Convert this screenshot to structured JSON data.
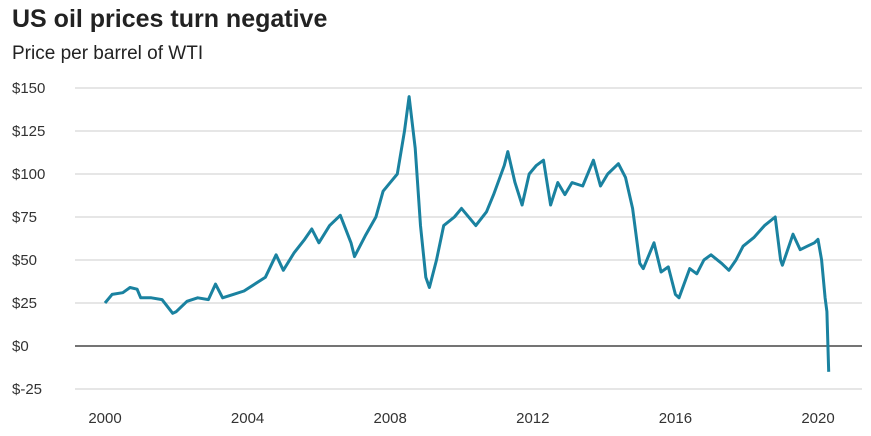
{
  "chart_data": {
    "type": "line",
    "title": "US oil prices turn negative",
    "subtitle": "Price per barrel of WTI",
    "xlabel": "",
    "ylabel": "",
    "ylim": [
      -25,
      150
    ],
    "yticks": [
      150,
      125,
      100,
      75,
      50,
      25,
      0,
      -25
    ],
    "ytick_labels": [
      "$150",
      "$125",
      "$100",
      "$75",
      "$50",
      "$25",
      "$0",
      "$-25"
    ],
    "xticks": [
      2000,
      2004,
      2008,
      2012,
      2016,
      2020
    ],
    "xtick_labels": [
      "2000",
      "2004",
      "2008",
      "2012",
      "2016",
      "2020"
    ],
    "grid": true,
    "line_color": "#1a82a0",
    "x": [
      2000.0,
      2000.2,
      2000.5,
      2000.7,
      2000.9,
      2001.0,
      2001.3,
      2001.6,
      2001.9,
      2002.0,
      2002.3,
      2002.6,
      2002.9,
      2003.1,
      2003.3,
      2003.6,
      2003.9,
      2004.2,
      2004.5,
      2004.8,
      2005.0,
      2005.3,
      2005.6,
      2005.8,
      2006.0,
      2006.3,
      2006.6,
      2006.9,
      2007.0,
      2007.3,
      2007.6,
      2007.8,
      2008.0,
      2008.2,
      2008.4,
      2008.53,
      2008.7,
      2008.85,
      2009.0,
      2009.1,
      2009.3,
      2009.5,
      2009.8,
      2010.0,
      2010.4,
      2010.7,
      2010.9,
      2011.2,
      2011.3,
      2011.5,
      2011.7,
      2011.9,
      2012.1,
      2012.3,
      2012.5,
      2012.7,
      2012.9,
      2013.1,
      2013.4,
      2013.7,
      2013.9,
      2014.1,
      2014.4,
      2014.6,
      2014.8,
      2015.0,
      2015.1,
      2015.4,
      2015.6,
      2015.8,
      2016.0,
      2016.1,
      2016.4,
      2016.6,
      2016.8,
      2017.0,
      2017.3,
      2017.5,
      2017.7,
      2017.9,
      2018.2,
      2018.5,
      2018.8,
      2018.95,
      2019.0,
      2019.3,
      2019.5,
      2019.7,
      2019.9,
      2020.0,
      2020.1,
      2020.2,
      2020.25,
      2020.3
    ],
    "values": [
      25,
      30,
      31,
      34,
      33,
      28,
      28,
      27,
      19,
      20,
      26,
      28,
      27,
      36,
      28,
      30,
      32,
      36,
      40,
      53,
      44,
      54,
      62,
      68,
      60,
      70,
      76,
      60,
      52,
      64,
      75,
      90,
      95,
      100,
      125,
      145,
      115,
      70,
      40,
      34,
      50,
      70,
      75,
      80,
      70,
      78,
      88,
      105,
      113,
      95,
      82,
      100,
      105,
      108,
      82,
      95,
      88,
      95,
      93,
      108,
      93,
      100,
      106,
      98,
      80,
      48,
      45,
      60,
      43,
      46,
      30,
      28,
      45,
      42,
      50,
      53,
      48,
      44,
      50,
      58,
      63,
      70,
      75,
      50,
      47,
      65,
      56,
      58,
      60,
      62,
      50,
      28,
      20,
      -15
    ]
  }
}
